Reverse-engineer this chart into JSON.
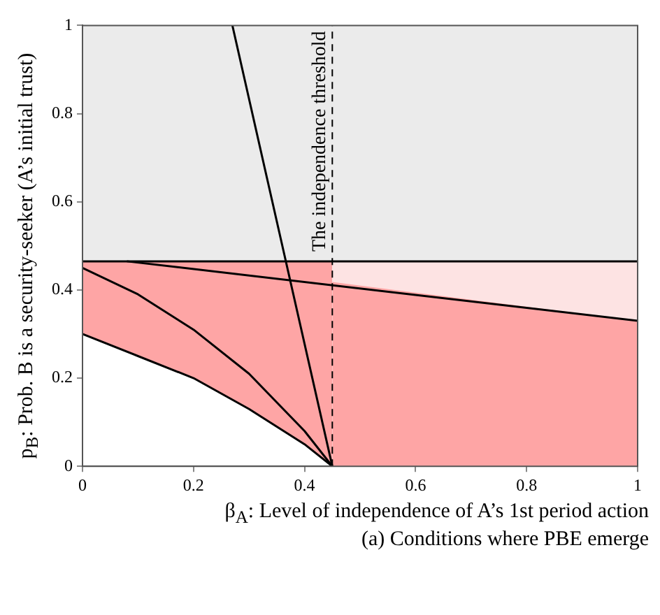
{
  "chart_data": {
    "type": "line",
    "xlabel": "β$_{A}$: Level of independence of A’s 1st period action",
    "ylabel": "p$_{B}$: Prob. B is a security-seeker (A’s initial trust)",
    "annotations": [
      "(a) Conditions where PBE emerge"
    ],
    "xlim": [
      0,
      1
    ],
    "ylim": [
      0,
      1
    ],
    "xticks": [
      0,
      0.2,
      0.4,
      0.6,
      0.8,
      1
    ],
    "yticks": [
      0,
      0.2,
      0.4,
      0.6,
      0.8,
      1
    ],
    "grid": false,
    "legend": false,
    "series": [
      {
        "type": "area",
        "color": "#fea5a5",
        "x": [
          0,
          0.1,
          0.2,
          0.3,
          0.4,
          0.45
        ],
        "values": [
          0.465,
          0.465,
          0.465,
          0.465,
          0.465,
          0.465
        ]
      },
      {
        "type": "area",
        "color": "#fea5a5",
        "x": [
          0.45,
          1
        ],
        "values": [
          0.418,
          0.33
        ]
      },
      {
        "color": "#000000",
        "x": [
          0,
          1
        ],
        "values": [
          0.465,
          0.465
        ]
      },
      {
        "color": "#000000",
        "x": [
          0.08,
          1
        ],
        "values": [
          0.465,
          0.33
        ]
      },
      {
        "color": "#000000",
        "x": [
          0.27,
          0.45
        ],
        "values": [
          1,
          0
        ]
      },
      {
        "color": "#000000",
        "x": [
          0,
          0.1,
          0.2,
          0.3,
          0.4,
          0.45
        ],
        "values": [
          0.3,
          0.25,
          0.2,
          0.13,
          0.05,
          0
        ]
      },
      {
        "color": "#000000",
        "x": [
          0,
          0.1,
          0.2,
          0.3,
          0.4,
          0.45
        ],
        "values": [
          0.45,
          0.39,
          0.31,
          0.21,
          0.08,
          0
        ]
      }
    ],
    "bands": [
      {
        "axis": "x",
        "from": 0.45,
        "to": 1,
        "color": "#fde3e3"
      },
      {
        "axis": "y",
        "from": 0.465,
        "to": 1,
        "color": "#ebebeb"
      }
    ],
    "ref_lines": [
      {
        "axis": "x",
        "value": 0.45,
        "label": "The independence threshold",
        "line_style": "dashed",
        "color": "#000000"
      }
    ]
  }
}
